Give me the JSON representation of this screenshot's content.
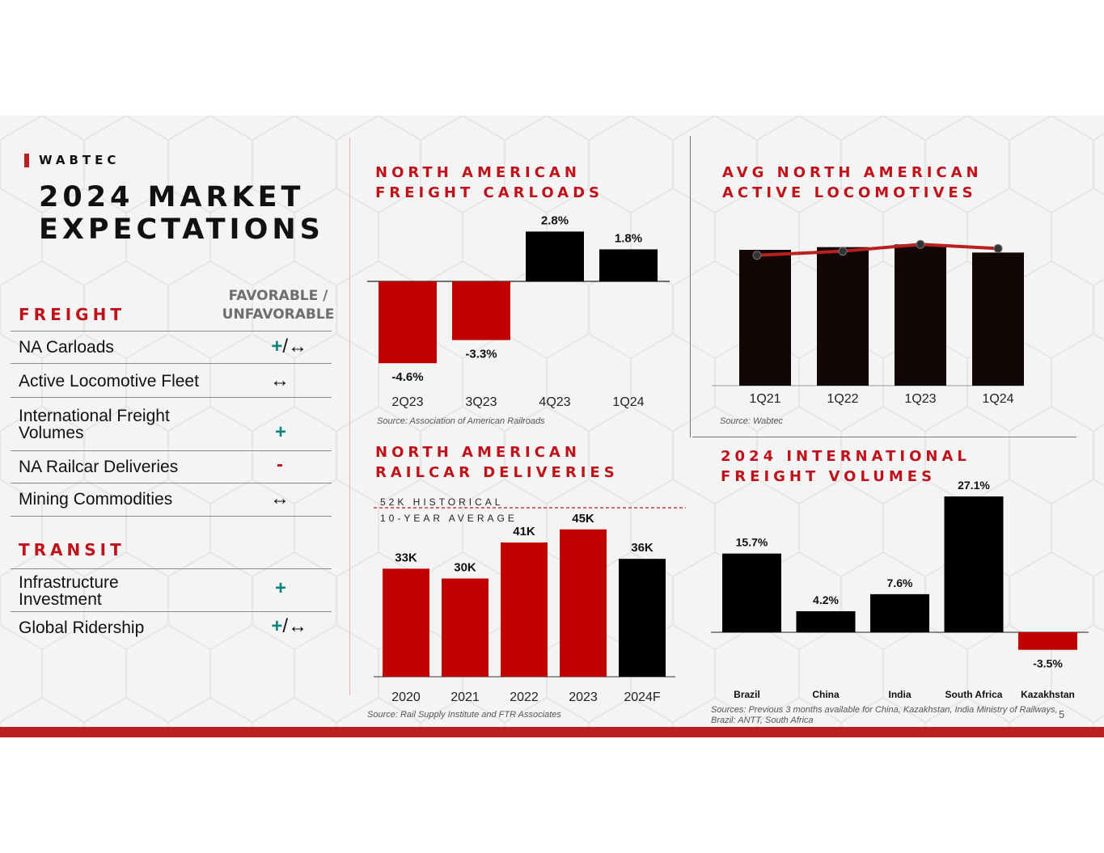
{
  "brand": "WABTEC",
  "title_lines": [
    "2024 MARKET",
    "EXPECTATIONS"
  ],
  "colors": {
    "accent": "#c0121b",
    "bar_dark": "#000000",
    "bar_red": "#c00000",
    "favorable": "#13857e",
    "bottom_bar": "#b8211f"
  },
  "freight": {
    "heading": "FREIGHT",
    "column_heading": "FAVORABLE / UNFAVORABLE",
    "rows": [
      {
        "label": "NA Carloads",
        "plus": "+",
        "rest": "/↔"
      },
      {
        "label": "Active Locomotive Fleet",
        "plus": "",
        "rest": "↔"
      },
      {
        "label": "International Freight Volumes",
        "plus": "+",
        "rest": ""
      },
      {
        "label": "NA Railcar Deliveries",
        "minus": "-"
      },
      {
        "label": "Mining Commodities",
        "plus": "",
        "rest": "↔"
      }
    ]
  },
  "transit": {
    "heading": "TRANSIT",
    "rows": [
      {
        "label": "Infrastructure Investment",
        "plus": "+",
        "rest": ""
      },
      {
        "label": "Global Ridership",
        "plus": "+",
        "rest": "/↔"
      }
    ]
  },
  "page_number": "5",
  "chart_data": [
    {
      "type": "bar",
      "title": "NORTH AMERICAN FREIGHT CARLOADS",
      "categories": [
        "2Q23",
        "3Q23",
        "4Q23",
        "1Q24"
      ],
      "values": [
        -4.6,
        -3.3,
        2.8,
        1.8
      ],
      "data_labels": [
        "-4.6%",
        "-3.3%",
        "2.8%",
        "1.8%"
      ],
      "bar_colors": [
        "#c00000",
        "#c00000",
        "#000000",
        "#000000"
      ],
      "ylim": [
        -5,
        3.5
      ],
      "source": "Source: Association of American Railroads"
    },
    {
      "type": "bar",
      "title": "AVG NORTH AMERICAN ACTIVE LOCOMOTIVES",
      "categories": [
        "1Q21",
        "1Q22",
        "1Q23",
        "1Q24"
      ],
      "series": [
        {
          "type": "bar",
          "values": [
            100,
            102,
            104,
            98
          ]
        },
        {
          "type": "line",
          "values": [
            96,
            99,
            104,
            101
          ]
        }
      ],
      "ylim": [
        0,
        110
      ],
      "source": "Source: Wabtec"
    },
    {
      "type": "bar",
      "title": "NORTH AMERICAN RAILCAR DELIVERIES",
      "categories": [
        "2020",
        "2021",
        "2022",
        "2023",
        "2024F"
      ],
      "values": [
        33,
        30,
        41,
        45,
        36
      ],
      "data_labels": [
        "33K",
        "30K",
        "41K",
        "45K",
        "36K"
      ],
      "bar_colors": [
        "#c00000",
        "#c00000",
        "#c00000",
        "#c00000",
        "#000000"
      ],
      "reference_line": {
        "value": 52,
        "label_lines": [
          "52K HISTORICAL",
          "10-YEAR AVERAGE"
        ]
      },
      "ylim": [
        0,
        55
      ],
      "source": "Source: Rail Supply Institute and FTR Associates"
    },
    {
      "type": "bar",
      "title": "2024 INTERNATIONAL FREIGHT VOLUMES",
      "categories": [
        "Brazil",
        "China",
        "India",
        "South Africa",
        "Kazakhstan"
      ],
      "values": [
        15.7,
        4.2,
        7.6,
        27.1,
        -3.5
      ],
      "data_labels": [
        "15.7%",
        "4.2%",
        "7.6%",
        "27.1%",
        "-3.5%"
      ],
      "bar_colors": [
        "#000000",
        "#000000",
        "#000000",
        "#000000",
        "#c00000"
      ],
      "ylim": [
        -8,
        30
      ],
      "source": "Sources: Previous 3 months available for China, Kazakhstan, India Ministry of Railways, Brazil: ANTT, South Africa"
    }
  ]
}
